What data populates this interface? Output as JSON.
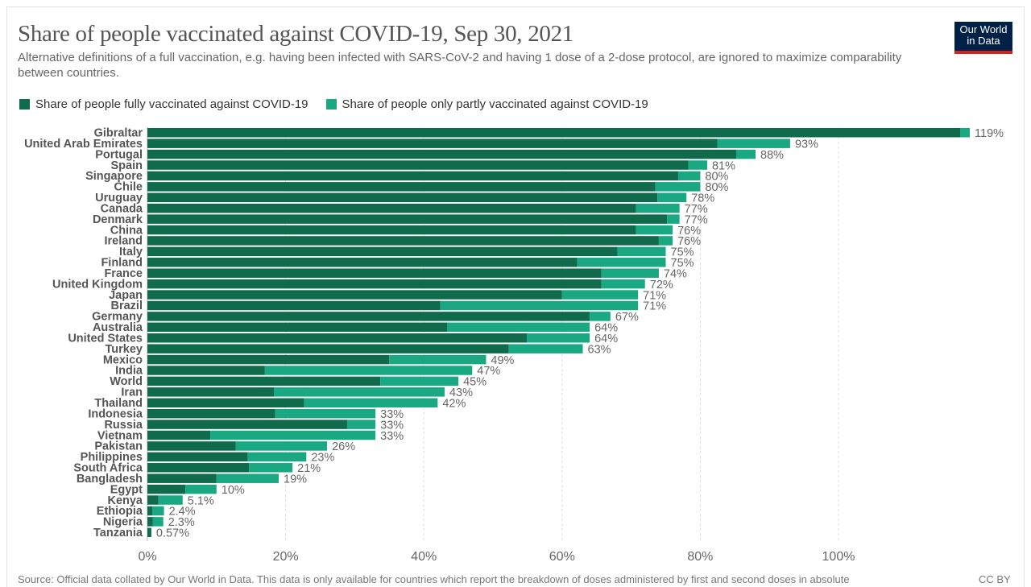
{
  "title": "Share of people vaccinated against COVID-19, Sep 30, 2021",
  "subtitle": "Alternative definitions of a full vaccination, e.g. having been infected with SARS-CoV-2 and having 1 dose of a 2-dose protocol, are ignored to maximize comparability between countries.",
  "logo": "Our World in Data",
  "source": "Source: Official data collated by Our World in Data. This data is only available for countries which report the breakdown of doses administered by first and second doses in absolute",
  "license": "CC BY",
  "colors": {
    "fully": "#0f6b4c",
    "partly": "#1aa883",
    "grid": "#dddddd",
    "label": "#555555"
  },
  "chart_data": {
    "type": "bar",
    "orientation": "horizontal",
    "stacked": true,
    "title": "Share of people vaccinated against COVID-19, Sep 30, 2021",
    "xlim": [
      0,
      120
    ],
    "xticks": [
      "0%",
      "20%",
      "40%",
      "60%",
      "80%",
      "100%"
    ],
    "xtick_values": [
      0,
      20,
      40,
      60,
      80,
      100
    ],
    "grid": "vertical-dashed",
    "legend_position": "top-left",
    "series": [
      {
        "name": "Share of people fully vaccinated against COVID-19",
        "key": "fully"
      },
      {
        "name": "Share of people only partly vaccinated against COVID-19",
        "key": "partly"
      }
    ],
    "rows": [
      {
        "country": "Gibraltar",
        "fully": 117.6,
        "partly": 1.4,
        "label": "119%"
      },
      {
        "country": "United Arab Emirates",
        "fully": 82.5,
        "partly": 10.5,
        "label": "93%"
      },
      {
        "country": "Portugal",
        "fully": 85.2,
        "partly": 2.8,
        "label": "88%"
      },
      {
        "country": "Spain",
        "fully": 78.3,
        "partly": 2.7,
        "label": "81%"
      },
      {
        "country": "Singapore",
        "fully": 76.8,
        "partly": 3.2,
        "label": "80%"
      },
      {
        "country": "Chile",
        "fully": 73.5,
        "partly": 6.5,
        "label": "80%"
      },
      {
        "country": "Uruguay",
        "fully": 73.8,
        "partly": 4.2,
        "label": "78%"
      },
      {
        "country": "Canada",
        "fully": 70.7,
        "partly": 6.3,
        "label": "77%"
      },
      {
        "country": "Denmark",
        "fully": 75.2,
        "partly": 1.8,
        "label": "77%"
      },
      {
        "country": "China",
        "fully": 70.7,
        "partly": 5.3,
        "label": "76%"
      },
      {
        "country": "Ireland",
        "fully": 74.0,
        "partly": 2.0,
        "label": "76%"
      },
      {
        "country": "Italy",
        "fully": 68.0,
        "partly": 7.0,
        "label": "75%"
      },
      {
        "country": "Finland",
        "fully": 62.2,
        "partly": 12.8,
        "label": "75%"
      },
      {
        "country": "France",
        "fully": 65.7,
        "partly": 8.3,
        "label": "74%"
      },
      {
        "country": "United Kingdom",
        "fully": 65.7,
        "partly": 6.3,
        "label": "72%"
      },
      {
        "country": "Japan",
        "fully": 60.0,
        "partly": 11.0,
        "label": "71%"
      },
      {
        "country": "Brazil",
        "fully": 42.4,
        "partly": 28.6,
        "label": "71%"
      },
      {
        "country": "Germany",
        "fully": 64.0,
        "partly": 3.0,
        "label": "67%"
      },
      {
        "country": "Australia",
        "fully": 43.4,
        "partly": 20.6,
        "label": "64%"
      },
      {
        "country": "United States",
        "fully": 54.9,
        "partly": 9.1,
        "label": "64%"
      },
      {
        "country": "Turkey",
        "fully": 52.3,
        "partly": 10.7,
        "label": "63%"
      },
      {
        "country": "Mexico",
        "fully": 35.0,
        "partly": 14.0,
        "label": "49%"
      },
      {
        "country": "India",
        "fully": 17.0,
        "partly": 30.0,
        "label": "47%"
      },
      {
        "country": "World",
        "fully": 33.7,
        "partly": 11.3,
        "label": "45%"
      },
      {
        "country": "Iran",
        "fully": 18.3,
        "partly": 24.7,
        "label": "43%"
      },
      {
        "country": "Thailand",
        "fully": 22.7,
        "partly": 19.3,
        "label": "42%"
      },
      {
        "country": "Indonesia",
        "fully": 18.5,
        "partly": 14.5,
        "label": "33%"
      },
      {
        "country": "Russia",
        "fully": 28.9,
        "partly": 4.1,
        "label": "33%"
      },
      {
        "country": "Vietnam",
        "fully": 9.1,
        "partly": 23.9,
        "label": "33%"
      },
      {
        "country": "Pakistan",
        "fully": 12.8,
        "partly": 13.2,
        "label": "26%"
      },
      {
        "country": "Philippines",
        "fully": 14.5,
        "partly": 8.5,
        "label": "23%"
      },
      {
        "country": "South Africa",
        "fully": 14.7,
        "partly": 6.3,
        "label": "21%"
      },
      {
        "country": "Bangladesh",
        "fully": 10.0,
        "partly": 9.0,
        "label": "19%"
      },
      {
        "country": "Egypt",
        "fully": 5.5,
        "partly": 4.5,
        "label": "10%"
      },
      {
        "country": "Kenya",
        "fully": 1.6,
        "partly": 3.5,
        "label": "5.1%"
      },
      {
        "country": "Ethiopia",
        "fully": 0.7,
        "partly": 1.7,
        "label": "2.4%"
      },
      {
        "country": "Nigeria",
        "fully": 0.8,
        "partly": 1.5,
        "label": "2.3%"
      },
      {
        "country": "Tanzania",
        "fully": 0.57,
        "partly": 0,
        "label": "0.57%"
      }
    ]
  }
}
